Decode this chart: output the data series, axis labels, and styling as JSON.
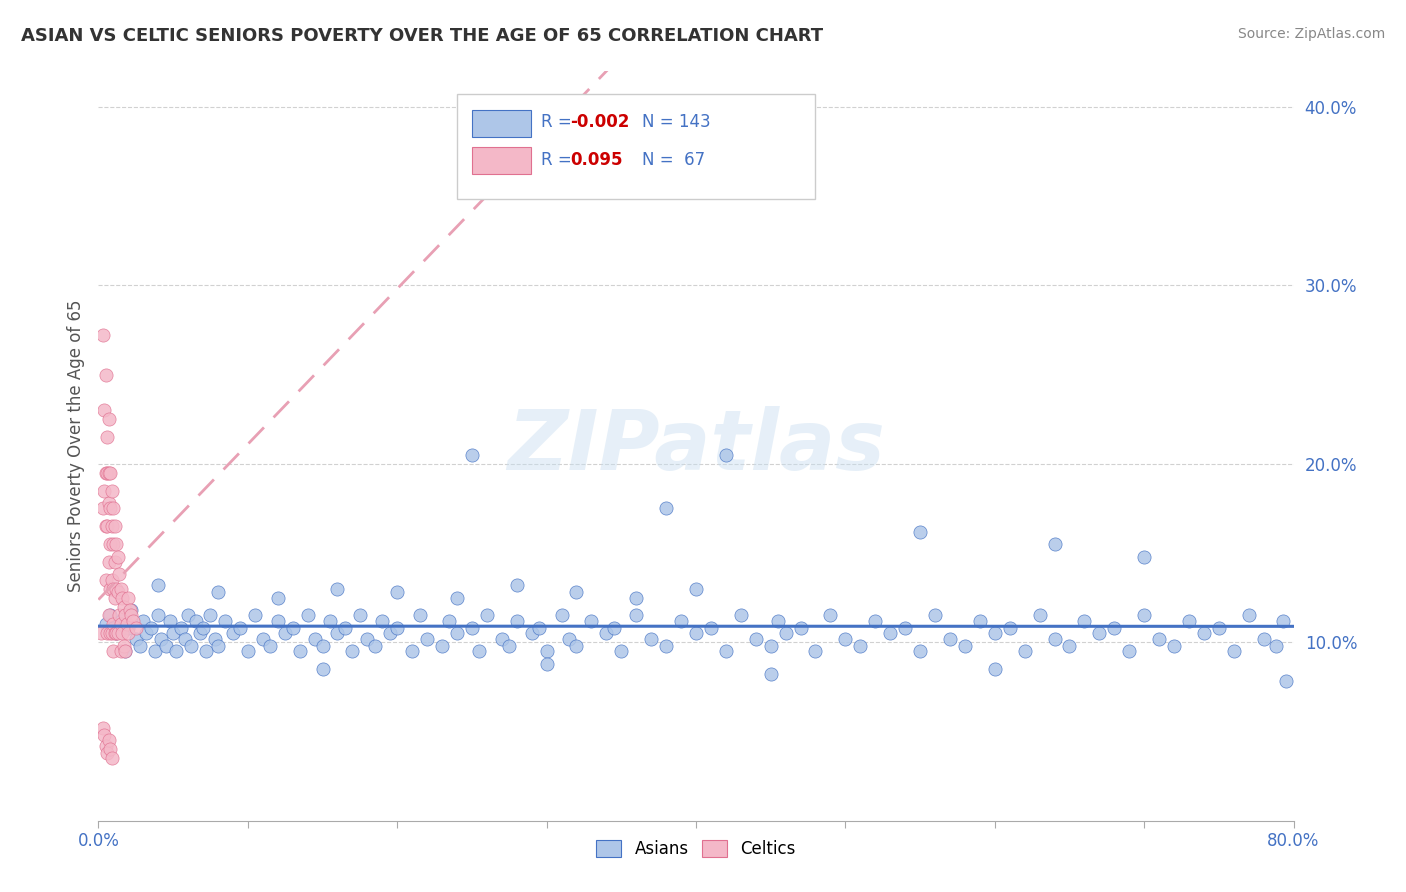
{
  "title": "ASIAN VS CELTIC SENIORS POVERTY OVER THE AGE OF 65 CORRELATION CHART",
  "source": "Source: ZipAtlas.com",
  "ylabel": "Seniors Poverty Over the Age of 65",
  "xlim": [
    0.0,
    0.8
  ],
  "ylim": [
    0.0,
    0.42
  ],
  "xticks": [
    0.0,
    0.1,
    0.2,
    0.3,
    0.4,
    0.5,
    0.6,
    0.7,
    0.8
  ],
  "ytick_positions": [
    0.1,
    0.2,
    0.3,
    0.4
  ],
  "ytick_labels": [
    "10.0%",
    "20.0%",
    "30.0%",
    "40.0%"
  ],
  "asian_color": "#aec6e8",
  "asian_color_dark": "#4472C4",
  "celtic_color": "#f4b8c8",
  "celtic_color_dark": "#e07090",
  "watermark_text": "ZIPatlas",
  "asian_trend_color": "#4472C4",
  "celtic_trend_color": "#e8a0b4",
  "asian_x": [
    0.005,
    0.008,
    0.01,
    0.012,
    0.015,
    0.018,
    0.02,
    0.022,
    0.025,
    0.028,
    0.03,
    0.032,
    0.035,
    0.038,
    0.04,
    0.042,
    0.045,
    0.048,
    0.05,
    0.052,
    0.055,
    0.058,
    0.06,
    0.062,
    0.065,
    0.068,
    0.07,
    0.072,
    0.075,
    0.078,
    0.08,
    0.085,
    0.09,
    0.095,
    0.1,
    0.105,
    0.11,
    0.115,
    0.12,
    0.125,
    0.13,
    0.135,
    0.14,
    0.145,
    0.15,
    0.155,
    0.16,
    0.165,
    0.17,
    0.175,
    0.18,
    0.185,
    0.19,
    0.195,
    0.2,
    0.21,
    0.215,
    0.22,
    0.23,
    0.235,
    0.24,
    0.25,
    0.255,
    0.26,
    0.27,
    0.275,
    0.28,
    0.29,
    0.295,
    0.3,
    0.31,
    0.315,
    0.32,
    0.33,
    0.34,
    0.345,
    0.35,
    0.36,
    0.37,
    0.38,
    0.39,
    0.4,
    0.41,
    0.42,
    0.43,
    0.44,
    0.45,
    0.455,
    0.46,
    0.47,
    0.48,
    0.49,
    0.5,
    0.51,
    0.52,
    0.53,
    0.54,
    0.55,
    0.56,
    0.57,
    0.58,
    0.59,
    0.6,
    0.61,
    0.62,
    0.63,
    0.64,
    0.65,
    0.66,
    0.67,
    0.68,
    0.69,
    0.7,
    0.71,
    0.72,
    0.73,
    0.74,
    0.75,
    0.76,
    0.77,
    0.78,
    0.788,
    0.793,
    0.795,
    0.25,
    0.38,
    0.42,
    0.55,
    0.64,
    0.7,
    0.15,
    0.3,
    0.45,
    0.6,
    0.04,
    0.08,
    0.12,
    0.16,
    0.2,
    0.24,
    0.28,
    0.32,
    0.36,
    0.4
  ],
  "asian_y": [
    0.11,
    0.115,
    0.108,
    0.105,
    0.112,
    0.095,
    0.108,
    0.118,
    0.102,
    0.098,
    0.112,
    0.105,
    0.108,
    0.095,
    0.115,
    0.102,
    0.098,
    0.112,
    0.105,
    0.095,
    0.108,
    0.102,
    0.115,
    0.098,
    0.112,
    0.105,
    0.108,
    0.095,
    0.115,
    0.102,
    0.098,
    0.112,
    0.105,
    0.108,
    0.095,
    0.115,
    0.102,
    0.098,
    0.112,
    0.105,
    0.108,
    0.095,
    0.115,
    0.102,
    0.098,
    0.112,
    0.105,
    0.108,
    0.095,
    0.115,
    0.102,
    0.098,
    0.112,
    0.105,
    0.108,
    0.095,
    0.115,
    0.102,
    0.098,
    0.112,
    0.105,
    0.108,
    0.095,
    0.115,
    0.102,
    0.098,
    0.112,
    0.105,
    0.108,
    0.095,
    0.115,
    0.102,
    0.098,
    0.112,
    0.105,
    0.108,
    0.095,
    0.115,
    0.102,
    0.098,
    0.112,
    0.105,
    0.108,
    0.095,
    0.115,
    0.102,
    0.098,
    0.112,
    0.105,
    0.108,
    0.095,
    0.115,
    0.102,
    0.098,
    0.112,
    0.105,
    0.108,
    0.095,
    0.115,
    0.102,
    0.098,
    0.112,
    0.105,
    0.108,
    0.095,
    0.115,
    0.102,
    0.098,
    0.112,
    0.105,
    0.108,
    0.095,
    0.115,
    0.102,
    0.098,
    0.112,
    0.105,
    0.108,
    0.095,
    0.115,
    0.102,
    0.098,
    0.112,
    0.078,
    0.205,
    0.175,
    0.205,
    0.162,
    0.155,
    0.148,
    0.085,
    0.088,
    0.082,
    0.085,
    0.132,
    0.128,
    0.125,
    0.13,
    0.128,
    0.125,
    0.132,
    0.128,
    0.125,
    0.13
  ],
  "celtic_x": [
    0.002,
    0.003,
    0.003,
    0.004,
    0.004,
    0.005,
    0.005,
    0.005,
    0.005,
    0.006,
    0.006,
    0.006,
    0.006,
    0.007,
    0.007,
    0.007,
    0.007,
    0.007,
    0.008,
    0.008,
    0.008,
    0.008,
    0.008,
    0.009,
    0.009,
    0.009,
    0.009,
    0.01,
    0.01,
    0.01,
    0.01,
    0.01,
    0.011,
    0.011,
    0.011,
    0.011,
    0.012,
    0.012,
    0.012,
    0.013,
    0.013,
    0.013,
    0.014,
    0.014,
    0.015,
    0.015,
    0.015,
    0.016,
    0.016,
    0.017,
    0.017,
    0.018,
    0.018,
    0.019,
    0.02,
    0.02,
    0.021,
    0.022,
    0.023,
    0.025,
    0.003,
    0.004,
    0.005,
    0.006,
    0.007,
    0.008,
    0.009
  ],
  "celtic_y": [
    0.105,
    0.272,
    0.175,
    0.23,
    0.185,
    0.25,
    0.135,
    0.195,
    0.165,
    0.215,
    0.195,
    0.165,
    0.105,
    0.225,
    0.178,
    0.195,
    0.145,
    0.115,
    0.195,
    0.175,
    0.155,
    0.13,
    0.105,
    0.185,
    0.165,
    0.135,
    0.105,
    0.175,
    0.155,
    0.13,
    0.11,
    0.095,
    0.165,
    0.145,
    0.125,
    0.105,
    0.155,
    0.13,
    0.105,
    0.148,
    0.128,
    0.105,
    0.138,
    0.115,
    0.13,
    0.11,
    0.095,
    0.125,
    0.105,
    0.12,
    0.098,
    0.115,
    0.095,
    0.11,
    0.125,
    0.105,
    0.118,
    0.115,
    0.112,
    0.108,
    0.052,
    0.048,
    0.042,
    0.038,
    0.045,
    0.04,
    0.035
  ]
}
